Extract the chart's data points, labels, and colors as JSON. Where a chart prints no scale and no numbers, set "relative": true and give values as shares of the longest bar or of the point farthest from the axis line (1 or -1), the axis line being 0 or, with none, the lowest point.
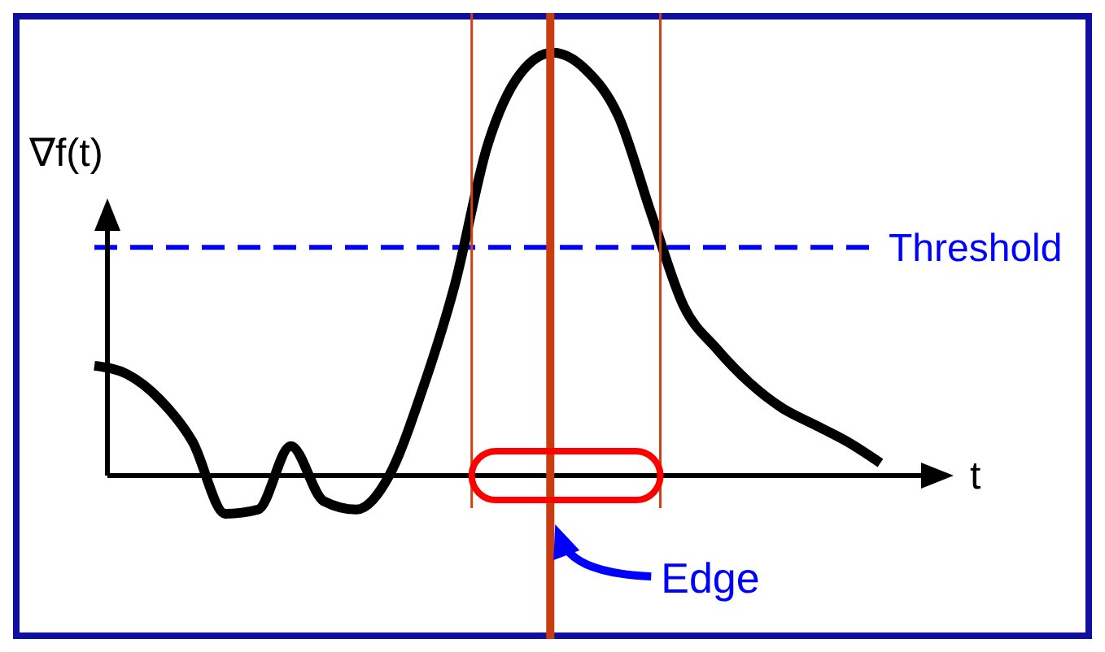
{
  "chart_data": {
    "type": "line",
    "relative": true,
    "ylabel": "∇f(t)",
    "xlabel": "t",
    "categories": [
      null,
      null,
      null,
      null,
      null,
      null,
      null,
      null,
      null,
      null,
      null,
      null,
      null,
      null,
      null,
      null,
      null,
      null,
      null,
      null,
      null,
      null,
      null,
      null,
      null
    ],
    "series": [
      {
        "color": "#000000",
        "values": [
          0.26,
          0.24,
          0.18,
          0.08,
          -0.09,
          -0.08,
          0.07,
          -0.06,
          -0.08,
          0.0,
          0.2,
          0.45,
          0.78,
          0.95,
          1,
          0.96,
          0.85,
          0.62,
          0.4,
          0.3,
          0.22,
          0.16,
          0.12,
          0.08,
          0.03
        ]
      }
    ],
    "ref_lines": [
      {
        "axis": "y",
        "value": 0.54,
        "label": "Threshold",
        "color": "#0000ff",
        "line_style": "dashed"
      }
    ],
    "annotations": [
      "Edge"
    ],
    "marker": "none",
    "line_style": "solid"
  }
}
